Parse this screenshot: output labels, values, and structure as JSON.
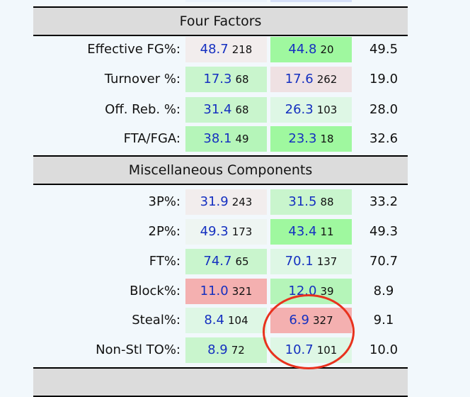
{
  "colors": {
    "pink": "#f2eded",
    "green": "#9ff89f",
    "lightgreen": "#c9f5cd",
    "palegreen": "#def7e5",
    "rosy": "#efe1e3",
    "midgreen": "#b5f5b9",
    "red": "#f4b0b0",
    "header": "#dcdcdc",
    "annotation": "#e8321e"
  },
  "sections": [
    {
      "title": "Four Factors",
      "rows": [
        {
          "label": "Effective FG%:",
          "off": {
            "value": "48.7",
            "rank": "218",
            "color": "#f2eded"
          },
          "def": {
            "value": "44.8",
            "rank": "20",
            "color": "#9ff89f"
          },
          "avg": "49.5"
        },
        {
          "label": "Turnover %:",
          "off": {
            "value": "17.3",
            "rank": "68",
            "color": "#c9f5cd"
          },
          "def": {
            "value": "17.6",
            "rank": "262",
            "color": "#efe1e3"
          },
          "avg": "19.0"
        },
        {
          "label": "Off. Reb. %:",
          "off": {
            "value": "31.4",
            "rank": "68",
            "color": "#c9f5cd"
          },
          "def": {
            "value": "26.3",
            "rank": "103",
            "color": "#def7e5"
          },
          "avg": "28.0"
        },
        {
          "label": "FTA/FGA:",
          "off": {
            "value": "38.1",
            "rank": "49",
            "color": "#b5f5b9"
          },
          "def": {
            "value": "23.3",
            "rank": "18",
            "color": "#9ff89f"
          },
          "avg": "32.6"
        }
      ]
    },
    {
      "title": "Miscellaneous Components",
      "rows": [
        {
          "label": "3P%:",
          "off": {
            "value": "31.9",
            "rank": "243",
            "color": "#f2eded"
          },
          "def": {
            "value": "31.5",
            "rank": "88",
            "color": "#c9f5cd"
          },
          "avg": "33.2"
        },
        {
          "label": "2P%:",
          "off": {
            "value": "49.3",
            "rank": "173",
            "color": "#eef5f2"
          },
          "def": {
            "value": "43.4",
            "rank": "11",
            "color": "#9ff89f"
          },
          "avg": "49.3"
        },
        {
          "label": "FT%:",
          "off": {
            "value": "74.7",
            "rank": "65",
            "color": "#c9f5cd"
          },
          "def": {
            "value": "70.1",
            "rank": "137",
            "color": "#def7e5"
          },
          "avg": "70.7"
        },
        {
          "label": "Block%:",
          "off": {
            "value": "11.0",
            "rank": "321",
            "color": "#f4b0b0"
          },
          "def": {
            "value": "12.0",
            "rank": "39",
            "color": "#b5f5b9"
          },
          "avg": "8.9"
        },
        {
          "label": "Steal%:",
          "off": {
            "value": "8.4",
            "rank": "104",
            "color": "#def7e5"
          },
          "def": {
            "value": "6.9",
            "rank": "327",
            "color": "#f4b0b0"
          },
          "avg": "9.1"
        },
        {
          "label": "Non-Stl TO%:",
          "off": {
            "value": "8.9",
            "rank": "72",
            "color": "#c9f5cd"
          },
          "def": {
            "value": "10.7",
            "rank": "101",
            "color": "#def7e5"
          },
          "avg": "10.0"
        }
      ]
    }
  ]
}
